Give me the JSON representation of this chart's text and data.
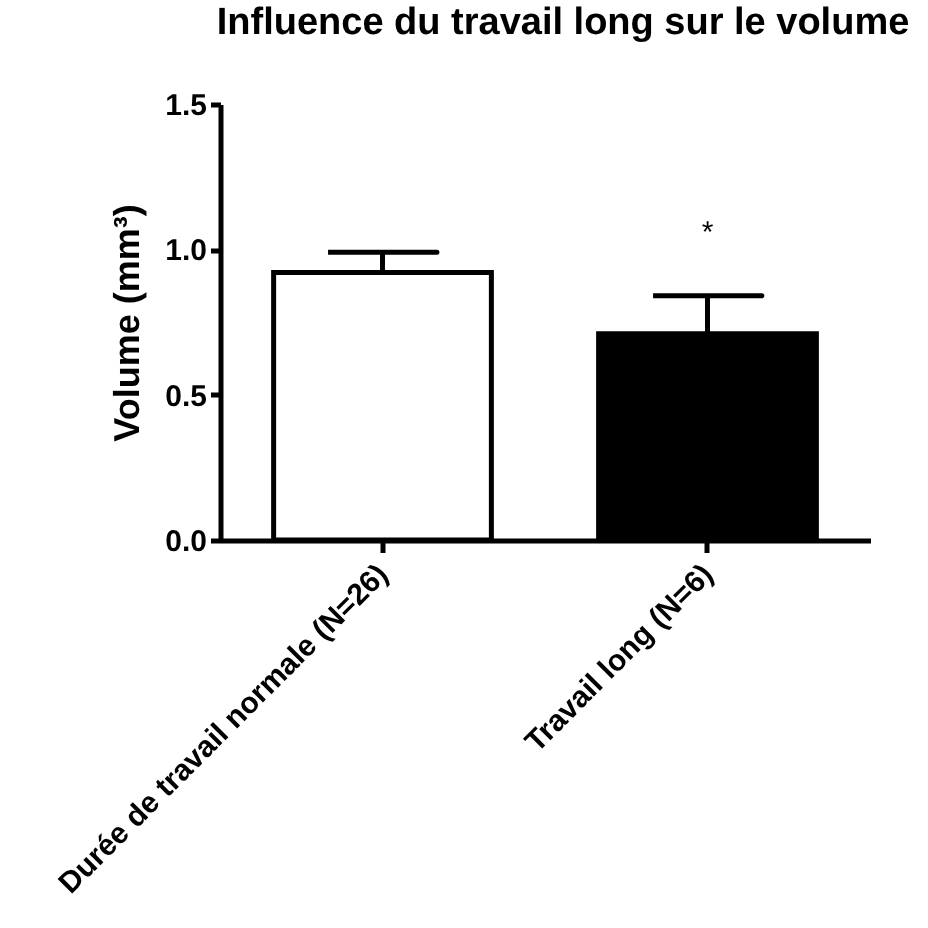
{
  "chart_data": {
    "type": "bar",
    "title": "Influence du travail long sur le volume",
    "ylabel": "Volume (mm³)",
    "categories": [
      "Durée de travail normale (N=26)",
      "Travail long (N=6)"
    ],
    "values": [
      0.92,
      0.71
    ],
    "colors": [
      "#ffffff",
      "#000000"
    ],
    "errors": [
      [
        0.92,
        0.99
      ],
      [
        0.71,
        0.84
      ]
    ],
    "ylim": [
      0,
      1.5
    ],
    "yticks": [
      {
        "value": 0,
        "label": "0.0"
      },
      0.5,
      {
        "value": 1,
        "label": "1.0"
      },
      1.5
    ],
    "grid": false,
    "annotations": [
      "*"
    ]
  }
}
